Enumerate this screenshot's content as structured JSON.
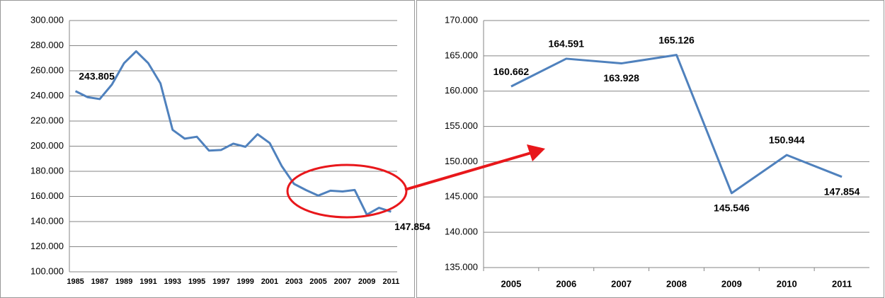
{
  "chart_data": [
    {
      "type": "line",
      "x": [
        1985,
        1986,
        1987,
        1988,
        1989,
        1990,
        1991,
        1992,
        1993,
        1994,
        1995,
        1996,
        1997,
        1998,
        1999,
        2000,
        2001,
        2002,
        2003,
        2004,
        2005,
        2006,
        2007,
        2008,
        2009,
        2010,
        2011
      ],
      "series": [
        {
          "color": "#4f81bd",
          "values": [
            243805,
            239000,
            237500,
            249000,
            266000,
            275500,
            266000,
            250000,
            213000,
            206000,
            207500,
            196500,
            197000,
            202000,
            199500,
            209500,
            202500,
            184000,
            170000,
            165000,
            160662,
            164591,
            163928,
            165126,
            145546,
            150944,
            147854
          ],
          "value_labels": [
            "243.805",
            null,
            null,
            null,
            null,
            null,
            null,
            null,
            null,
            null,
            null,
            null,
            null,
            null,
            null,
            null,
            null,
            null,
            null,
            null,
            null,
            null,
            null,
            null,
            null,
            null,
            "147.854"
          ]
        }
      ],
      "xlim": [
        1984.5,
        2011.5
      ],
      "xticks": [
        1985,
        1987,
        1989,
        1991,
        1993,
        1995,
        1997,
        1999,
        2001,
        2003,
        2005,
        2007,
        2009,
        2011
      ],
      "ylim": [
        100000,
        300000
      ],
      "yticks": [
        {
          "value": 100000,
          "label": "100.000"
        },
        {
          "value": 120000,
          "label": "120.000"
        },
        {
          "value": 140000,
          "label": "140.000"
        },
        {
          "value": 160000,
          "label": "160.000"
        },
        {
          "value": 180000,
          "label": "180.000"
        },
        {
          "value": 200000,
          "label": "200.000"
        },
        {
          "value": 220000,
          "label": "220.000"
        },
        {
          "value": 240000,
          "label": "240.000"
        },
        {
          "value": 260000,
          "label": "260.000"
        },
        {
          "value": 280000,
          "label": "280.000"
        },
        {
          "value": 300000,
          "label": "300.000"
        }
      ],
      "grid": true
    },
    {
      "type": "line",
      "categories": [
        "2005",
        "2006",
        "2007",
        "2008",
        "2009",
        "2010",
        "2011"
      ],
      "series": [
        {
          "color": "#4f81bd",
          "values": [
            160662,
            164591,
            163928,
            165126,
            145546,
            150944,
            147854
          ],
          "value_labels": [
            "160.662",
            "164.591",
            "163.928",
            "165.126",
            "145.546",
            "150.944",
            "147.854"
          ]
        }
      ],
      "ylim": [
        135000,
        170000
      ],
      "yticks": [
        {
          "value": 135000,
          "label": "135.000"
        },
        {
          "value": 140000,
          "label": "140.000"
        },
        {
          "value": 145000,
          "label": "145.000"
        },
        {
          "value": 150000,
          "label": "150.000"
        },
        {
          "value": 155000,
          "label": "155.000"
        },
        {
          "value": 160000,
          "label": "160.000"
        },
        {
          "value": 165000,
          "label": "165.000"
        },
        {
          "value": 170000,
          "label": "170.000"
        }
      ],
      "grid": true
    }
  ]
}
